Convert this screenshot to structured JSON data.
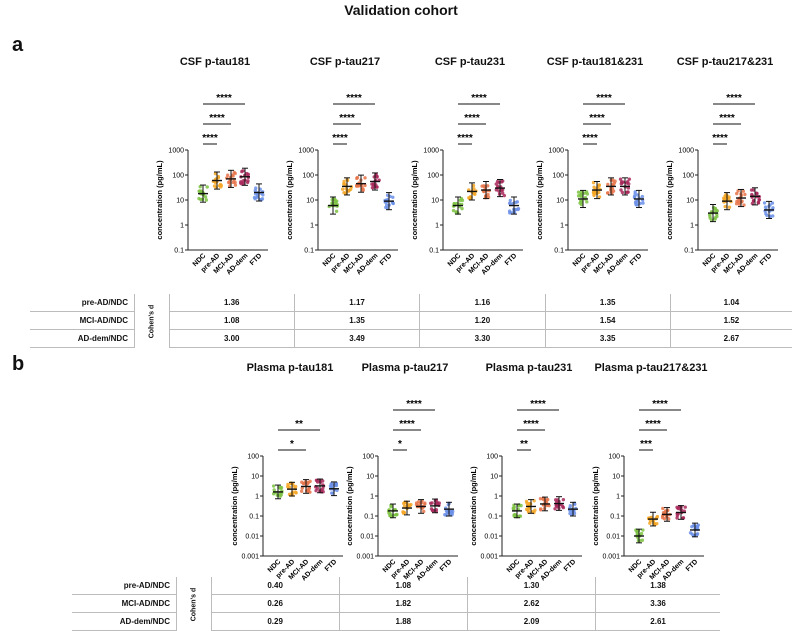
{
  "header": {
    "title": "Validation cohort",
    "panel_a": "a",
    "panel_b": "b"
  },
  "ylabel": "concentration (pg/mL)",
  "groups": [
    "NDC",
    "pre-AD",
    "MCI-AD",
    "AD-dem",
    "FTD"
  ],
  "colors": {
    "NDC": "#7cc242",
    "pre-AD": "#f5a623",
    "MCI-AD": "#e8744a",
    "AD-dem": "#a8285a",
    "FTD": "#6b8fe8"
  },
  "chart_data": [
    {
      "type": "scatter",
      "title": "CSF p-tau181",
      "ylabel": "concentration (pg/mL)",
      "yscale": "log",
      "ticks": [
        "1000",
        "100",
        "10",
        "1",
        "0.1"
      ],
      "ylim": [
        0.1,
        1000
      ],
      "categories": [
        "NDC",
        "pre-AD",
        "MCI-AD",
        "AD-dem",
        "FTD"
      ],
      "medians": [
        18,
        60,
        70,
        85,
        20
      ],
      "significance": [
        {
          "pair": [
            "NDC",
            "pre-AD"
          ],
          "label": "****"
        },
        {
          "pair": [
            "NDC",
            "MCI-AD"
          ],
          "label": "****"
        },
        {
          "pair": [
            "NDC",
            "AD-dem"
          ],
          "label": "****"
        }
      ]
    },
    {
      "type": "scatter",
      "title": "CSF p-tau217",
      "ylabel": "concentration (pg/mL)",
      "yscale": "log",
      "ticks": [
        "1000",
        "100",
        "10",
        "1",
        "0.1"
      ],
      "ylim": [
        0.1,
        1000
      ],
      "categories": [
        "NDC",
        "pre-AD",
        "MCI-AD",
        "AD-dem",
        "FTD"
      ],
      "medians": [
        6,
        35,
        45,
        55,
        9
      ],
      "significance": [
        {
          "pair": [
            "NDC",
            "pre-AD"
          ],
          "label": "****"
        },
        {
          "pair": [
            "NDC",
            "MCI-AD"
          ],
          "label": "****"
        },
        {
          "pair": [
            "NDC",
            "AD-dem"
          ],
          "label": "****"
        }
      ]
    },
    {
      "type": "scatter",
      "title": "CSF p-tau231",
      "ylabel": "concentration (pg/mL)",
      "yscale": "log",
      "ticks": [
        "1000",
        "100",
        "10",
        "1",
        "0.1"
      ],
      "ylim": [
        0.1,
        1000
      ],
      "categories": [
        "NDC",
        "pre-AD",
        "MCI-AD",
        "AD-dem",
        "FTD"
      ],
      "medians": [
        6,
        22,
        25,
        30,
        6
      ],
      "significance": [
        {
          "pair": [
            "NDC",
            "pre-AD"
          ],
          "label": "****"
        },
        {
          "pair": [
            "NDC",
            "MCI-AD"
          ],
          "label": "****"
        },
        {
          "pair": [
            "NDC",
            "AD-dem"
          ],
          "label": "****"
        }
      ]
    },
    {
      "type": "scatter",
      "title": "CSF p-tau181&231",
      "ylabel": "concentration (pg/mL)",
      "yscale": "log",
      "ticks": [
        "1000",
        "100",
        "10",
        "1",
        "0.1"
      ],
      "ylim": [
        0.1,
        1000
      ],
      "categories": [
        "NDC",
        "pre-AD",
        "MCI-AD",
        "AD-dem",
        "FTD"
      ],
      "medians": [
        11,
        25,
        35,
        35,
        11
      ],
      "significance": [
        {
          "pair": [
            "NDC",
            "pre-AD"
          ],
          "label": "****"
        },
        {
          "pair": [
            "NDC",
            "MCI-AD"
          ],
          "label": "****"
        },
        {
          "pair": [
            "NDC",
            "AD-dem"
          ],
          "label": "****"
        }
      ]
    },
    {
      "type": "scatter",
      "title": "CSF p-tau217&231",
      "ylabel": "concentration (pg/mL)",
      "yscale": "log",
      "ticks": [
        "1000",
        "100",
        "10",
        "1",
        "0.1"
      ],
      "ylim": [
        0.1,
        1000
      ],
      "categories": [
        "NDC",
        "pre-AD",
        "MCI-AD",
        "AD-dem",
        "FTD"
      ],
      "medians": [
        3,
        9,
        12,
        14,
        4
      ],
      "significance": [
        {
          "pair": [
            "NDC",
            "pre-AD"
          ],
          "label": "****"
        },
        {
          "pair": [
            "NDC",
            "MCI-AD"
          ],
          "label": "****"
        },
        {
          "pair": [
            "NDC",
            "AD-dem"
          ],
          "label": "****"
        }
      ]
    },
    {
      "type": "scatter",
      "title": "Plasma p-tau181",
      "ylabel": "concentration (pg/mL)",
      "yscale": "log",
      "ticks": [
        "100",
        "10",
        "1",
        "0.1",
        "0.01",
        "0.001"
      ],
      "ylim": [
        0.001,
        100
      ],
      "categories": [
        "NDC",
        "pre-AD",
        "MCI-AD",
        "AD-dem",
        "FTD"
      ],
      "medians": [
        1.6,
        2.2,
        3.0,
        3.2,
        2.3
      ],
      "significance": [
        {
          "pair": [
            "NDC",
            "MCI-AD"
          ],
          "label": "*"
        },
        {
          "pair": [
            "NDC",
            "AD-dem"
          ],
          "label": "**"
        }
      ]
    },
    {
      "type": "scatter",
      "title": "Plasma p-tau217",
      "ylabel": "concentration (pg/mL)",
      "yscale": "log",
      "ticks": [
        "100",
        "10",
        "1",
        "0.1",
        "0.01",
        "0.001"
      ],
      "ylim": [
        0.001,
        100
      ],
      "categories": [
        "NDC",
        "pre-AD",
        "MCI-AD",
        "AD-dem",
        "FTD"
      ],
      "medians": [
        0.18,
        0.25,
        0.3,
        0.32,
        0.22
      ],
      "significance": [
        {
          "pair": [
            "NDC",
            "pre-AD"
          ],
          "label": "*"
        },
        {
          "pair": [
            "NDC",
            "MCI-AD"
          ],
          "label": "****"
        },
        {
          "pair": [
            "NDC",
            "AD-dem"
          ],
          "label": "****"
        }
      ]
    },
    {
      "type": "scatter",
      "title": "Plasma p-tau231",
      "ylabel": "concentration (pg/mL)",
      "yscale": "log",
      "ticks": [
        "100",
        "10",
        "1",
        "0.1",
        "0.01",
        "0.001"
      ],
      "ylim": [
        0.001,
        100
      ],
      "categories": [
        "NDC",
        "pre-AD",
        "MCI-AD",
        "AD-dem",
        "FTD"
      ],
      "medians": [
        0.18,
        0.3,
        0.4,
        0.42,
        0.22
      ],
      "significance": [
        {
          "pair": [
            "NDC",
            "pre-AD"
          ],
          "label": "**"
        },
        {
          "pair": [
            "NDC",
            "MCI-AD"
          ],
          "label": "****"
        },
        {
          "pair": [
            "NDC",
            "AD-dem"
          ],
          "label": "****"
        }
      ]
    },
    {
      "type": "scatter",
      "title": "Plasma p-tau217&231",
      "ylabel": "concentration (pg/mL)",
      "yscale": "log",
      "ticks": [
        "100",
        "10",
        "1",
        "0.1",
        "0.01",
        "0.001"
      ],
      "ylim": [
        0.001,
        100
      ],
      "categories": [
        "NDC",
        "pre-AD",
        "MCI-AD",
        "AD-dem",
        "FTD"
      ],
      "medians": [
        0.01,
        0.07,
        0.12,
        0.15,
        0.02
      ],
      "significance": [
        {
          "pair": [
            "NDC",
            "pre-AD"
          ],
          "label": "***"
        },
        {
          "pair": [
            "NDC",
            "MCI-AD"
          ],
          "label": "****"
        },
        {
          "pair": [
            "NDC",
            "AD-dem"
          ],
          "label": "****"
        }
      ]
    }
  ],
  "table_a": {
    "side_label": "Cohen's d",
    "rows": [
      {
        "label": "pre-AD/NDC",
        "values": [
          "1.36",
          "1.17",
          "1.16",
          "1.35",
          "1.04"
        ]
      },
      {
        "label": "MCI-AD/NDC",
        "values": [
          "1.08",
          "1.35",
          "1.20",
          "1.54",
          "1.52"
        ]
      },
      {
        "label": "AD-dem/NDC",
        "values": [
          "3.00",
          "3.49",
          "3.30",
          "3.35",
          "2.67"
        ]
      }
    ]
  },
  "table_b": {
    "side_label": "Cohen's d",
    "rows": [
      {
        "label": "pre-AD/NDC",
        "values": [
          "0.40",
          "1.08",
          "1.30",
          "1.38"
        ]
      },
      {
        "label": "MCI-AD/NDC",
        "values": [
          "0.26",
          "1.82",
          "2.62",
          "3.36"
        ]
      },
      {
        "label": "AD-dem/NDC",
        "values": [
          "0.29",
          "1.88",
          "2.09",
          "2.61"
        ]
      }
    ]
  }
}
